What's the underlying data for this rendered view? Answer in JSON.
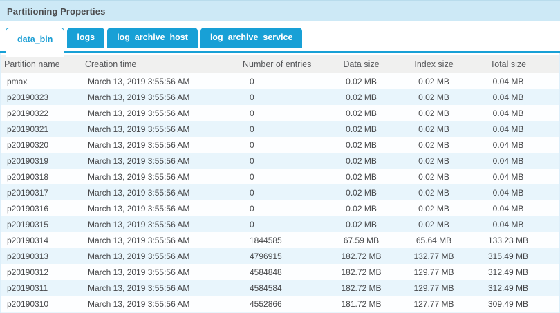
{
  "panel": {
    "title": "Partitioning Properties"
  },
  "tabs": [
    {
      "label": "data_bin",
      "active": true
    },
    {
      "label": "logs",
      "active": false
    },
    {
      "label": "log_archive_host",
      "active": false
    },
    {
      "label": "log_archive_service",
      "active": false
    }
  ],
  "table": {
    "columns": [
      "Partition name",
      "Creation time",
      "Number of entries",
      "Data size",
      "Index size",
      "Total size"
    ],
    "rows": [
      [
        "pmax",
        "March 13, 2019 3:55:56 AM",
        "0",
        "0.02 MB",
        "0.02 MB",
        "0.04 MB"
      ],
      [
        "p20190323",
        "March 13, 2019 3:55:56 AM",
        "0",
        "0.02 MB",
        "0.02 MB",
        "0.04 MB"
      ],
      [
        "p20190322",
        "March 13, 2019 3:55:56 AM",
        "0",
        "0.02 MB",
        "0.02 MB",
        "0.04 MB"
      ],
      [
        "p20190321",
        "March 13, 2019 3:55:56 AM",
        "0",
        "0.02 MB",
        "0.02 MB",
        "0.04 MB"
      ],
      [
        "p20190320",
        "March 13, 2019 3:55:56 AM",
        "0",
        "0.02 MB",
        "0.02 MB",
        "0.04 MB"
      ],
      [
        "p20190319",
        "March 13, 2019 3:55:56 AM",
        "0",
        "0.02 MB",
        "0.02 MB",
        "0.04 MB"
      ],
      [
        "p20190318",
        "March 13, 2019 3:55:56 AM",
        "0",
        "0.02 MB",
        "0.02 MB",
        "0.04 MB"
      ],
      [
        "p20190317",
        "March 13, 2019 3:55:56 AM",
        "0",
        "0.02 MB",
        "0.02 MB",
        "0.04 MB"
      ],
      [
        "p20190316",
        "March 13, 2019 3:55:56 AM",
        "0",
        "0.02 MB",
        "0.02 MB",
        "0.04 MB"
      ],
      [
        "p20190315",
        "March 13, 2019 3:55:56 AM",
        "0",
        "0.02 MB",
        "0.02 MB",
        "0.04 MB"
      ],
      [
        "p20190314",
        "March 13, 2019 3:55:56 AM",
        "1844585",
        "67.59 MB",
        "65.64 MB",
        "133.23 MB"
      ],
      [
        "p20190313",
        "March 13, 2019 3:55:56 AM",
        "4796915",
        "182.72 MB",
        "132.77 MB",
        "315.49 MB"
      ],
      [
        "p20190312",
        "March 13, 2019 3:55:56 AM",
        "4584848",
        "182.72 MB",
        "129.77 MB",
        "312.49 MB"
      ],
      [
        "p20190311",
        "March 13, 2019 3:55:56 AM",
        "4584584",
        "182.72 MB",
        "129.77 MB",
        "312.49 MB"
      ],
      [
        "p20190310",
        "March 13, 2019 3:55:56 AM",
        "4552866",
        "181.72 MB",
        "127.77 MB",
        "309.49 MB"
      ]
    ]
  },
  "colors": {
    "accent_blue": "#18a0d6",
    "title_bar_bg": "#cde9f6",
    "table_header_bg": "#f0f0ef",
    "row_alt_bg": "#e8f5fc"
  }
}
